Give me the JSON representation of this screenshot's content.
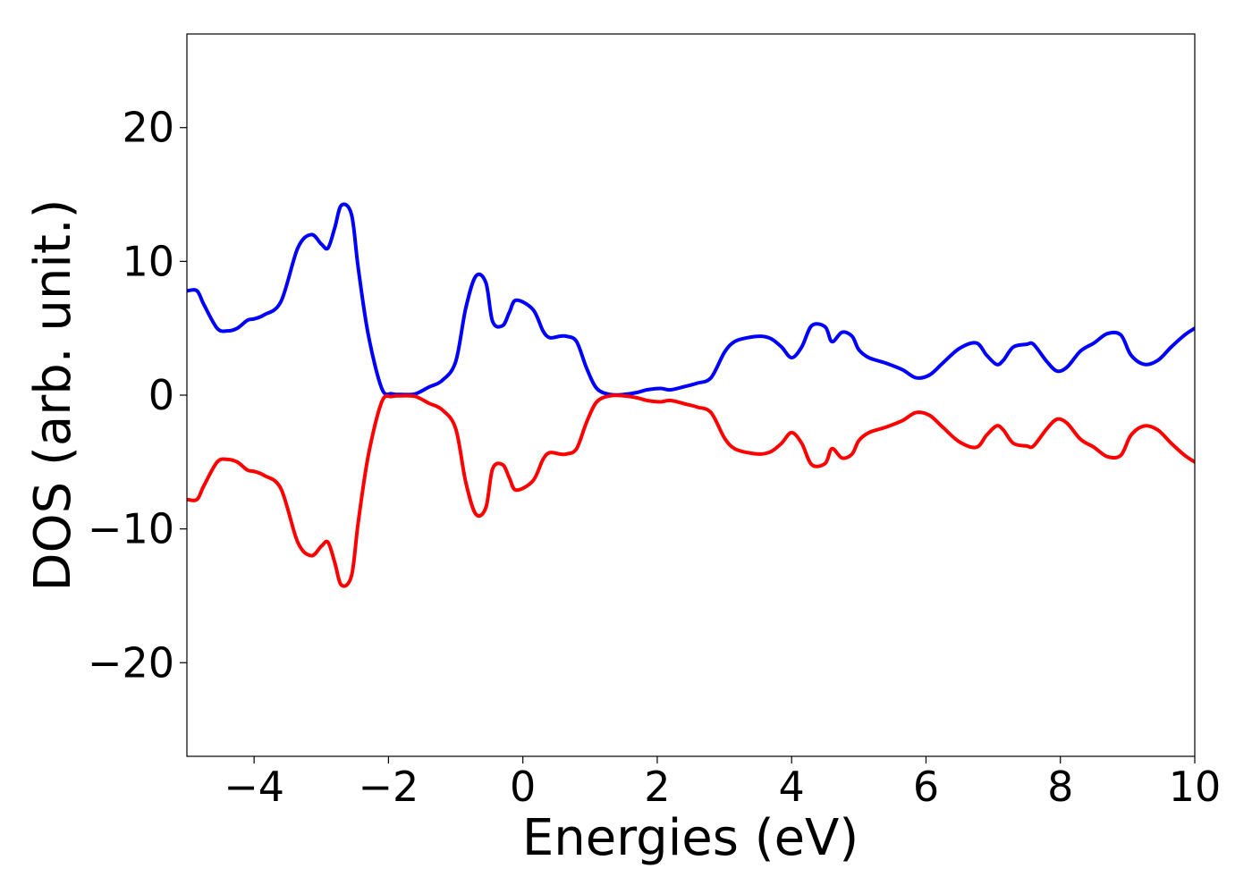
{
  "chart_data": {
    "type": "line",
    "title": "",
    "xlabel": "Energies (eV)",
    "ylabel": "DOS (arb. unit.)",
    "xlim": [
      -5,
      10
    ],
    "ylim": [
      -27,
      27
    ],
    "xticks": [
      -4,
      -2,
      0,
      2,
      4,
      6,
      8,
      10
    ],
    "xtick_labels": [
      "−4",
      "−2",
      "0",
      "2",
      "4",
      "6",
      "8",
      "10"
    ],
    "yticks": [
      -20,
      -10,
      0,
      10,
      20
    ],
    "ytick_labels": [
      "−20",
      "−10",
      "0",
      "10",
      "20"
    ],
    "grid": false,
    "series": [
      {
        "color": "#0000ff",
        "x": [
          -5.0,
          -4.85,
          -4.75,
          -4.55,
          -4.4,
          -4.25,
          -4.1,
          -4.0,
          -3.85,
          -3.6,
          -3.35,
          -3.15,
          -3.0,
          -2.9,
          -2.8,
          -2.7,
          -2.55,
          -2.45,
          -2.3,
          -2.1,
          -1.95,
          -1.8,
          -1.6,
          -1.4,
          -1.2,
          -1.0,
          -0.85,
          -0.7,
          -0.55,
          -0.45,
          -0.3,
          -0.2,
          -0.1,
          0.15,
          0.3,
          0.4,
          0.55,
          0.65,
          0.8,
          0.95,
          1.1,
          1.3,
          1.5,
          1.7,
          1.85,
          2.05,
          2.2,
          2.45,
          2.6,
          2.8,
          3.0,
          3.15,
          3.35,
          3.55,
          3.7,
          3.85,
          4.0,
          4.15,
          4.3,
          4.5,
          4.6,
          4.75,
          4.9,
          5.0,
          5.15,
          5.4,
          5.65,
          5.85,
          6.05,
          6.25,
          6.5,
          6.75,
          6.9,
          7.05,
          7.15,
          7.3,
          7.5,
          7.6,
          7.8,
          7.95,
          8.1,
          8.3,
          8.5,
          8.7,
          8.9,
          9.05,
          9.25,
          9.45,
          9.65,
          9.85,
          10.0
        ],
        "y": [
          7.8,
          7.8,
          6.8,
          5.0,
          4.8,
          5.0,
          5.6,
          5.7,
          6.0,
          7.0,
          11.0,
          12.0,
          11.3,
          11.0,
          12.5,
          14.2,
          13.5,
          9.5,
          4.5,
          0.5,
          0.1,
          0.05,
          0.1,
          0.6,
          1.1,
          2.5,
          6.5,
          8.9,
          8.4,
          5.5,
          5.2,
          6.2,
          7.1,
          6.4,
          4.8,
          4.3,
          4.4,
          4.4,
          4.0,
          2.0,
          0.5,
          0.05,
          0.05,
          0.2,
          0.4,
          0.5,
          0.4,
          0.7,
          0.9,
          1.3,
          3.2,
          4.0,
          4.3,
          4.4,
          4.2,
          3.6,
          2.8,
          3.6,
          5.2,
          5.1,
          4.0,
          4.7,
          4.4,
          3.4,
          2.8,
          2.4,
          1.9,
          1.3,
          1.5,
          2.4,
          3.5,
          3.9,
          3.0,
          2.3,
          2.6,
          3.6,
          3.8,
          3.8,
          2.5,
          1.8,
          2.1,
          3.3,
          3.9,
          4.6,
          4.5,
          3.0,
          2.3,
          2.6,
          3.6,
          4.5,
          5.0
        ]
      },
      {
        "color": "#ff0000",
        "x": [
          -5.0,
          -4.85,
          -4.75,
          -4.55,
          -4.4,
          -4.25,
          -4.1,
          -4.0,
          -3.85,
          -3.6,
          -3.35,
          -3.15,
          -3.0,
          -2.9,
          -2.8,
          -2.7,
          -2.55,
          -2.45,
          -2.3,
          -2.1,
          -1.95,
          -1.8,
          -1.6,
          -1.4,
          -1.2,
          -1.0,
          -0.85,
          -0.7,
          -0.55,
          -0.45,
          -0.3,
          -0.2,
          -0.1,
          0.15,
          0.3,
          0.4,
          0.55,
          0.65,
          0.8,
          0.95,
          1.1,
          1.3,
          1.5,
          1.7,
          1.85,
          2.05,
          2.2,
          2.45,
          2.6,
          2.8,
          3.0,
          3.15,
          3.35,
          3.55,
          3.7,
          3.85,
          4.0,
          4.15,
          4.3,
          4.5,
          4.6,
          4.75,
          4.9,
          5.0,
          5.15,
          5.4,
          5.65,
          5.85,
          6.05,
          6.25,
          6.5,
          6.75,
          6.9,
          7.05,
          7.15,
          7.3,
          7.5,
          7.6,
          7.8,
          7.95,
          8.1,
          8.3,
          8.5,
          8.7,
          8.9,
          9.05,
          9.25,
          9.45,
          9.65,
          9.85,
          10.0
        ],
        "y": [
          -7.8,
          -7.8,
          -6.8,
          -5.0,
          -4.8,
          -5.0,
          -5.6,
          -5.7,
          -6.0,
          -7.0,
          -11.0,
          -12.0,
          -11.3,
          -11.0,
          -12.5,
          -14.2,
          -13.5,
          -9.5,
          -4.5,
          -0.5,
          -0.1,
          -0.05,
          -0.1,
          -0.6,
          -1.1,
          -2.5,
          -6.5,
          -8.9,
          -8.4,
          -5.5,
          -5.2,
          -6.2,
          -7.1,
          -6.4,
          -4.8,
          -4.3,
          -4.4,
          -4.4,
          -4.0,
          -2.0,
          -0.5,
          -0.05,
          -0.05,
          -0.2,
          -0.4,
          -0.5,
          -0.4,
          -0.7,
          -0.9,
          -1.3,
          -3.2,
          -4.0,
          -4.3,
          -4.4,
          -4.2,
          -3.6,
          -2.8,
          -3.6,
          -5.2,
          -5.1,
          -4.0,
          -4.7,
          -4.4,
          -3.4,
          -2.8,
          -2.4,
          -1.9,
          -1.3,
          -1.5,
          -2.4,
          -3.5,
          -3.9,
          -3.0,
          -2.3,
          -2.6,
          -3.6,
          -3.8,
          -3.8,
          -2.5,
          -1.8,
          -2.1,
          -3.3,
          -3.9,
          -4.6,
          -4.5,
          -3.0,
          -2.3,
          -2.6,
          -3.6,
          -4.5,
          -5.0
        ]
      }
    ]
  }
}
